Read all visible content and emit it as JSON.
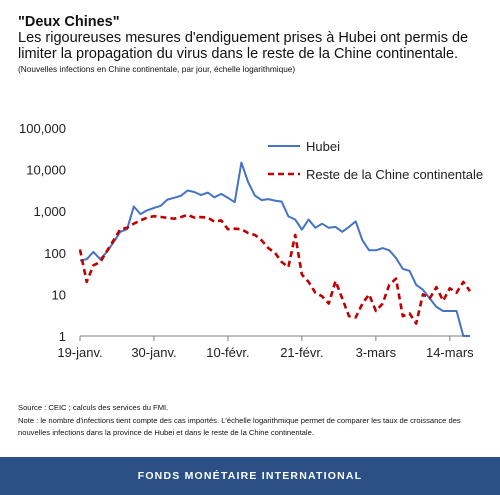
{
  "header": {
    "title": "\"Deux Chines\"",
    "subtitle": "Les rigoureuses mesures d'endiguement prises à Hubei ont permis de limiter la propagation du virus dans le reste de la Chine continentale.",
    "note": "(Nouvelles infections en Chine continentale, par jour, échelle logarithmique)"
  },
  "chart_data": {
    "type": "line",
    "yscale": "log",
    "ylim": [
      1,
      100000
    ],
    "yticks": [
      "1",
      "10",
      "100",
      "1,000",
      "10,000",
      "100,000"
    ],
    "xticks": [
      "19-janv.",
      "30-janv.",
      "10-févr.",
      "21-févr.",
      "3-mars",
      "14-mars"
    ],
    "grid": false,
    "legend_position": "top-right",
    "series": [
      {
        "name": "Hubei",
        "color": "#4472c4",
        "style": "solid",
        "points": [
          {
            "x": "19-janv.",
            "y": 65
          },
          {
            "x": "20-janv.",
            "y": 70
          },
          {
            "x": "21-janv.",
            "y": 105
          },
          {
            "x": "22-janv.",
            "y": 70
          },
          {
            "x": "23-janv.",
            "y": 105
          },
          {
            "x": "24-janv.",
            "y": 180
          },
          {
            "x": "25-janv.",
            "y": 320
          },
          {
            "x": "26-janv.",
            "y": 370
          },
          {
            "x": "27-janv.",
            "y": 1300
          },
          {
            "x": "28-janv.",
            "y": 850
          },
          {
            "x": "29-janv.",
            "y": 1050
          },
          {
            "x": "30-janv.",
            "y": 1200
          },
          {
            "x": "31-janv.",
            "y": 1350
          },
          {
            "x": "1-févr.",
            "y": 1900
          },
          {
            "x": "2-févr.",
            "y": 2100
          },
          {
            "x": "3-févr.",
            "y": 2350
          },
          {
            "x": "4-févr.",
            "y": 3150
          },
          {
            "x": "5-févr.",
            "y": 2900
          },
          {
            "x": "6-févr.",
            "y": 2450
          },
          {
            "x": "7-févr.",
            "y": 2800
          },
          {
            "x": "8-févr.",
            "y": 2150
          },
          {
            "x": "9-févr.",
            "y": 2600
          },
          {
            "x": "10-févr.",
            "y": 2100
          },
          {
            "x": "11-févr.",
            "y": 1650
          },
          {
            "x": "12-févr.",
            "y": 14800
          },
          {
            "x": "13-févr.",
            "y": 5000
          },
          {
            "x": "14-févr.",
            "y": 2400
          },
          {
            "x": "15-févr.",
            "y": 1850
          },
          {
            "x": "16-févr.",
            "y": 1950
          },
          {
            "x": "17-févr.",
            "y": 1800
          },
          {
            "x": "18-févr.",
            "y": 1700
          },
          {
            "x": "19-févr.",
            "y": 750
          },
          {
            "x": "20-févr.",
            "y": 630
          },
          {
            "x": "21-févr.",
            "y": 360
          },
          {
            "x": "22-févr.",
            "y": 630
          },
          {
            "x": "23-févr.",
            "y": 400
          },
          {
            "x": "24-févr.",
            "y": 500
          },
          {
            "x": "25-févr.",
            "y": 400
          },
          {
            "x": "26-févr.",
            "y": 420
          },
          {
            "x": "27-févr.",
            "y": 320
          },
          {
            "x": "28-févr.",
            "y": 420
          },
          {
            "x": "29-févr.",
            "y": 570
          },
          {
            "x": "1-mars",
            "y": 200
          },
          {
            "x": "2-mars",
            "y": 115
          },
          {
            "x": "3-mars",
            "y": 115
          },
          {
            "x": "4-mars",
            "y": 130
          },
          {
            "x": "5-mars",
            "y": 115
          },
          {
            "x": "6-mars",
            "y": 75
          },
          {
            "x": "7-mars",
            "y": 41
          },
          {
            "x": "8-mars",
            "y": 37
          },
          {
            "x": "9-mars",
            "y": 17
          },
          {
            "x": "10-mars",
            "y": 13
          },
          {
            "x": "11-mars",
            "y": 8
          },
          {
            "x": "12-mars",
            "y": 5
          },
          {
            "x": "13-mars",
            "y": 4
          },
          {
            "x": "14-mars",
            "y": 4
          },
          {
            "x": "15-mars",
            "y": 4
          },
          {
            "x": "16-mars",
            "y": 1
          },
          {
            "x": "17-mars",
            "y": 1
          }
        ]
      },
      {
        "name": "Reste de la Chine continentale",
        "color": "#c00000",
        "style": "dashed",
        "points": [
          {
            "x": "19-janv.",
            "y": 120
          },
          {
            "x": "20-janv.",
            "y": 20
          },
          {
            "x": "21-janv.",
            "y": 50
          },
          {
            "x": "22-janv.",
            "y": 60
          },
          {
            "x": "23-janv.",
            "y": 110
          },
          {
            "x": "24-janv.",
            "y": 200
          },
          {
            "x": "25-janv.",
            "y": 370
          },
          {
            "x": "26-janv.",
            "y": 400
          },
          {
            "x": "27-janv.",
            "y": 500
          },
          {
            "x": "28-janv.",
            "y": 600
          },
          {
            "x": "29-janv.",
            "y": 700
          },
          {
            "x": "30-janv.",
            "y": 760
          },
          {
            "x": "31-janv.",
            "y": 730
          },
          {
            "x": "1-févr.",
            "y": 690
          },
          {
            "x": "2-févr.",
            "y": 660
          },
          {
            "x": "3-févr.",
            "y": 720
          },
          {
            "x": "4-févr.",
            "y": 820
          },
          {
            "x": "5-févr.",
            "y": 700
          },
          {
            "x": "6-févr.",
            "y": 720
          },
          {
            "x": "7-févr.",
            "y": 700
          },
          {
            "x": "8-févr.",
            "y": 560
          },
          {
            "x": "9-févr.",
            "y": 600
          },
          {
            "x": "10-févr.",
            "y": 370
          },
          {
            "x": "11-févr.",
            "y": 380
          },
          {
            "x": "12-févr.",
            "y": 370
          },
          {
            "x": "13-févr.",
            "y": 300
          },
          {
            "x": "14-févr.",
            "y": 270
          },
          {
            "x": "15-févr.",
            "y": 200
          },
          {
            "x": "16-févr.",
            "y": 130
          },
          {
            "x": "17-févr.",
            "y": 100
          },
          {
            "x": "18-févr.",
            "y": 60
          },
          {
            "x": "19-févr.",
            "y": 45
          },
          {
            "x": "20-févr.",
            "y": 270
          },
          {
            "x": "21-févr.",
            "y": 30
          },
          {
            "x": "22-févr.",
            "y": 20
          },
          {
            "x": "23-févr.",
            "y": 11
          },
          {
            "x": "24-févr.",
            "y": 9
          },
          {
            "x": "25-févr.",
            "y": 6
          },
          {
            "x": "26-févr.",
            "y": 21
          },
          {
            "x": "27-févr.",
            "y": 8
          },
          {
            "x": "28-févr.",
            "y": 3
          },
          {
            "x": "29-févr.",
            "y": 2.8
          },
          {
            "x": "1-mars",
            "y": 6
          },
          {
            "x": "2-mars",
            "y": 10
          },
          {
            "x": "3-mars",
            "y": 4
          },
          {
            "x": "4-mars",
            "y": 6
          },
          {
            "x": "5-mars",
            "y": 17
          },
          {
            "x": "6-mars",
            "y": 24
          },
          {
            "x": "7-mars",
            "y": 3
          },
          {
            "x": "8-mars",
            "y": 3.5
          },
          {
            "x": "9-mars",
            "y": 2
          },
          {
            "x": "10-mars",
            "y": 10
          },
          {
            "x": "11-mars",
            "y": 8
          },
          {
            "x": "12-mars",
            "y": 15
          },
          {
            "x": "13-mars",
            "y": 7
          },
          {
            "x": "14-mars",
            "y": 14
          },
          {
            "x": "15-mars",
            "y": 11
          },
          {
            "x": "16-mars",
            "y": 20
          },
          {
            "x": "17-mars",
            "y": 12
          }
        ]
      }
    ]
  },
  "footnotes": {
    "source": "Source : CEIC ; calculs des services du FMI.",
    "note": "Note : le nombre d'infections tient compte des cas importés. L'échelle logarithmique permet de comparer les taux de croissance des nouvelles infections dans la province de Hubei et dans le reste de la Chine continentale."
  },
  "footer": {
    "label": "FONDS MONÉTAIRE INTERNATIONAL",
    "background": "#2a5086"
  }
}
